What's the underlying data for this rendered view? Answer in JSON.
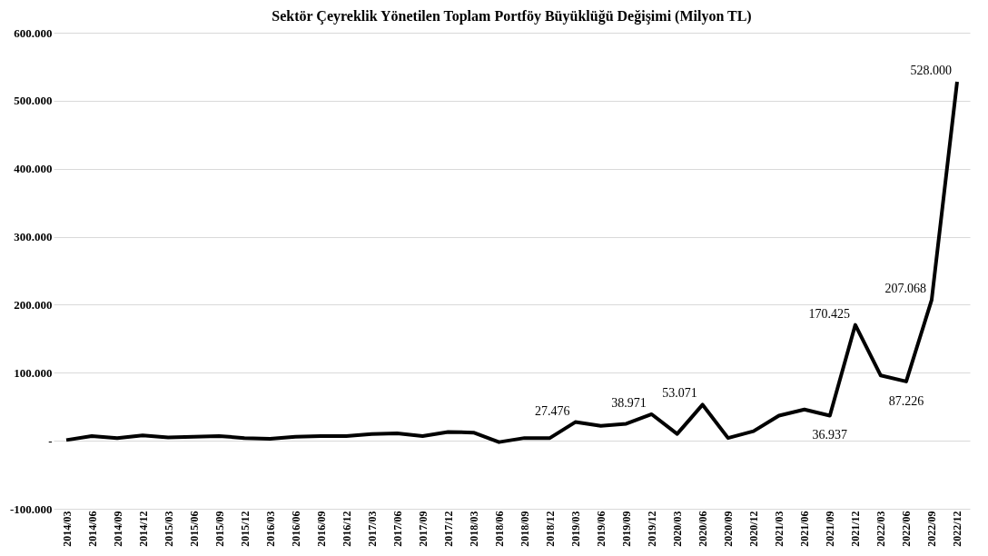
{
  "chart_data": {
    "type": "line",
    "title": "Sektör Çeyreklik Yönetilen Toplam Portföy Büyüklüğü Değişimi (Milyon TL)",
    "categories": [
      "2014/03",
      "2014/06",
      "2014/09",
      "2014/12",
      "2015/03",
      "2015/06",
      "2015/09",
      "2015/12",
      "2016/03",
      "2016/06",
      "2016/09",
      "2016/12",
      "2017/03",
      "2017/06",
      "2017/09",
      "2017/12",
      "2018/03",
      "2018/06",
      "2018/09",
      "2018/12",
      "2019/03",
      "2019/06",
      "2019/09",
      "2019/12",
      "2020/03",
      "2020/06",
      "2020/09",
      "2020/12",
      "2021/03",
      "2021/06",
      "2021/09",
      "2021/12",
      "2022/03",
      "2022/06",
      "2022/09",
      "2022/12"
    ],
    "series": [
      {
        "color": "#000000",
        "values": [
          1000,
          7000,
          4000,
          8000,
          5000,
          6000,
          7000,
          4000,
          3000,
          6000,
          7000,
          7000,
          10000,
          11000,
          7000,
          13000,
          12000,
          -2000,
          4000,
          4000,
          27476,
          22000,
          25000,
          38971,
          10000,
          53071,
          4000,
          14000,
          37000,
          46000,
          36937,
          170425,
          96000,
          87226,
          207068,
          528000
        ],
        "value_labels": [
          null,
          null,
          null,
          null,
          null,
          null,
          null,
          null,
          null,
          null,
          null,
          null,
          null,
          null,
          null,
          null,
          null,
          null,
          null,
          null,
          "27.476",
          null,
          null,
          "38.971",
          null,
          "53.071",
          null,
          null,
          null,
          null,
          "36.937",
          "170.425",
          null,
          "87.226",
          "207.068",
          "528.000"
        ]
      }
    ],
    "ylim": [
      -100000,
      600000
    ],
    "yticks": [
      {
        "value": -100000,
        "label": "-100.000"
      },
      {
        "value": 0,
        "label": "-"
      },
      {
        "value": 100000,
        "label": "100.000"
      },
      {
        "value": 200000,
        "label": "200.000"
      },
      {
        "value": 300000,
        "label": "300.000"
      },
      {
        "value": 400000,
        "label": "400.000"
      },
      {
        "value": 500000,
        "label": "500.000"
      },
      {
        "value": 600000,
        "label": "600.000"
      }
    ],
    "grid": "y",
    "marker": "none",
    "line_style": "solid"
  }
}
